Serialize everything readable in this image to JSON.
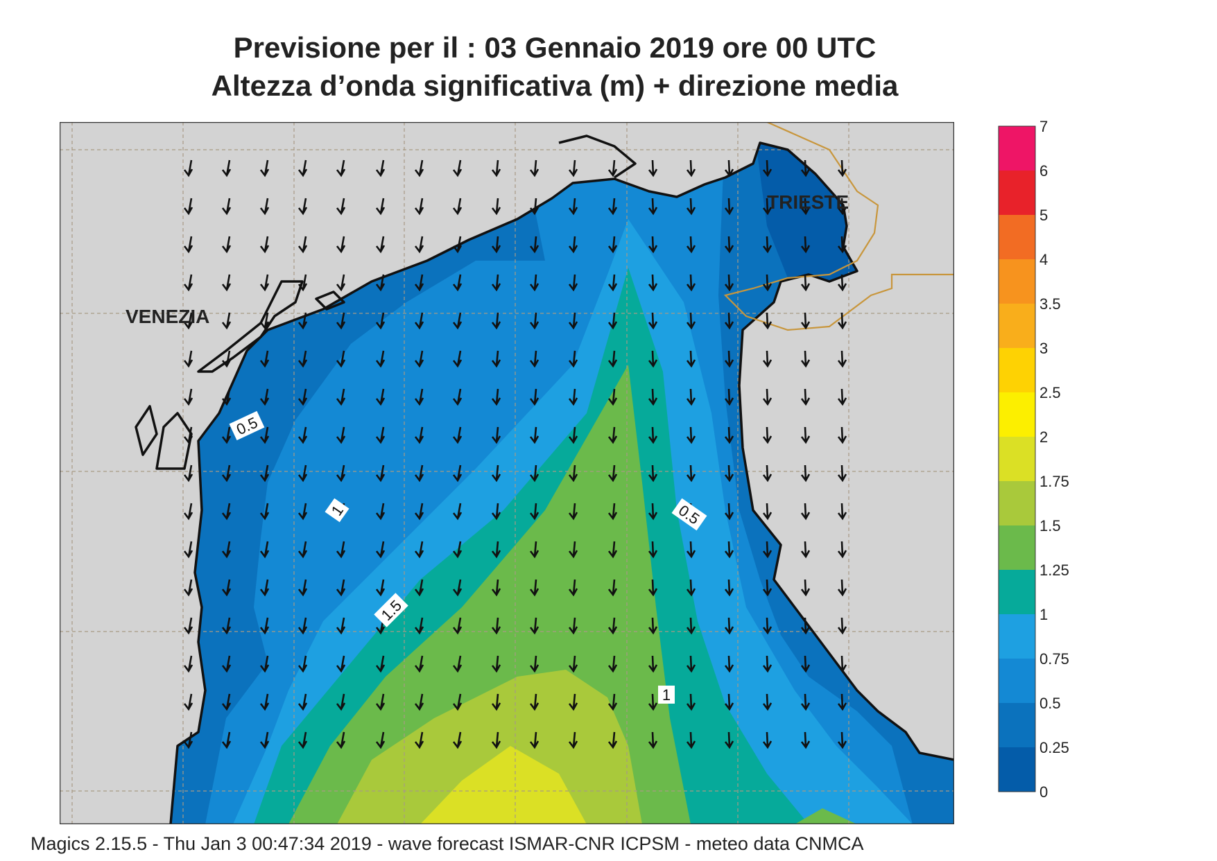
{
  "title": {
    "line1": "Previsione per il  :  03  Gennaio  2019   ore 00 UTC",
    "line2": "Altezza d’onda significativa (m) + direzione media"
  },
  "map": {
    "cities": [
      "VENEZIA",
      "TRIESTE"
    ],
    "contour_labels": [
      "0.5",
      "1",
      "1.5",
      "0.5",
      "1"
    ],
    "arrow_direction": "south (slightly south-west)",
    "land_color": "#d3d3d3"
  },
  "legend": {
    "ticks": [
      "7",
      "6",
      "5",
      "4",
      "3.5",
      "3",
      "2.5",
      "2",
      "1.75",
      "1.5",
      "1.25",
      "1",
      "0.75",
      "0.5",
      "0.25",
      "0"
    ],
    "colors_top_to_bottom": [
      "#ee1566",
      "#e8222a",
      "#f26c23",
      "#f7931e",
      "#f9ae1b",
      "#fed203",
      "#fcef00",
      "#dbe025",
      "#a9c93b",
      "#6bba4b",
      "#06aa9a",
      "#1ea0e1",
      "#1489d4",
      "#0b72bd",
      "#045ca9"
    ]
  },
  "footer": "Magics 2.15.5 - Thu Jan  3 00:47:34 2019 - wave forecast  ISMAR-CNR  ICPSM - meteo data   CNMCA"
}
